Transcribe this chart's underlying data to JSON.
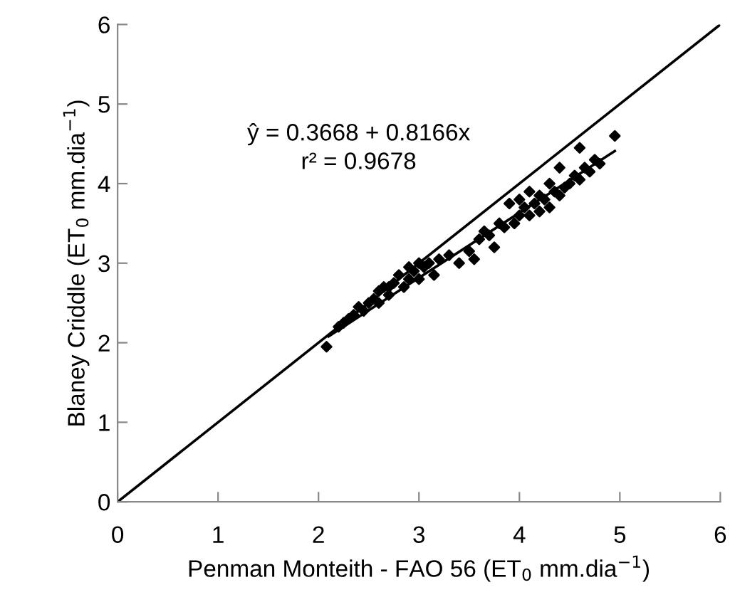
{
  "chart_data": {
    "type": "scatter",
    "xlabel": "Penman Monteith - FAO 56 (ET$_{0}$ mm.dia$^{−1}$)",
    "ylabel": "Blaney Criddle (ET$_{0}$ mm.dia$^{−1}$)",
    "annotations": [
      "ŷ = 0.3668 + 0.8166x",
      "r² = 0.9678"
    ],
    "xlim": [
      0,
      6
    ],
    "ylim": [
      0,
      6
    ],
    "xticks": [
      0,
      1,
      2,
      3,
      4,
      5,
      6
    ],
    "yticks": [
      0,
      1,
      2,
      3,
      4,
      5,
      6
    ],
    "grid": false,
    "legend": false,
    "series": [
      {
        "color": "#000000",
        "marker": "diamond",
        "x": [
          2.08,
          2.2,
          2.25,
          2.3,
          2.35,
          2.4,
          2.45,
          2.5,
          2.55,
          2.6,
          2.6,
          2.65,
          2.7,
          2.7,
          2.75,
          2.8,
          2.85,
          2.9,
          2.9,
          2.95,
          3.0,
          3.0,
          3.05,
          3.1,
          3.15,
          3.2,
          3.3,
          3.4,
          3.5,
          3.55,
          3.6,
          3.65,
          3.7,
          3.75,
          3.8,
          3.85,
          3.9,
          3.95,
          4.0,
          4.0,
          4.05,
          4.1,
          4.1,
          4.15,
          4.2,
          4.2,
          4.25,
          4.3,
          4.3,
          4.35,
          4.4,
          4.4,
          4.45,
          4.5,
          4.55,
          4.6,
          4.6,
          4.65,
          4.7,
          4.75,
          4.8,
          4.95
        ],
        "values": [
          1.95,
          2.2,
          2.25,
          2.3,
          2.35,
          2.45,
          2.4,
          2.5,
          2.55,
          2.5,
          2.65,
          2.7,
          2.6,
          2.7,
          2.75,
          2.85,
          2.7,
          2.8,
          2.95,
          2.9,
          2.8,
          3.0,
          2.95,
          3.0,
          2.85,
          3.05,
          3.1,
          3.0,
          3.15,
          3.05,
          3.3,
          3.4,
          3.35,
          3.2,
          3.5,
          3.45,
          3.75,
          3.5,
          3.6,
          3.8,
          3.7,
          3.6,
          3.9,
          3.75,
          3.65,
          3.85,
          3.8,
          3.7,
          4.0,
          3.9,
          3.85,
          4.2,
          3.95,
          4.0,
          4.1,
          4.05,
          4.45,
          4.2,
          4.15,
          4.3,
          4.25,
          4.6
        ]
      },
      {
        "type": "line",
        "color": "#000000",
        "marker": "none",
        "x": [
          2.1,
          4.95
        ],
        "values": [
          2.08,
          4.41
        ]
      },
      {
        "type": "line",
        "color": "#000000",
        "marker": "none",
        "x": [
          0,
          6
        ],
        "values": [
          0,
          6
        ]
      }
    ]
  }
}
